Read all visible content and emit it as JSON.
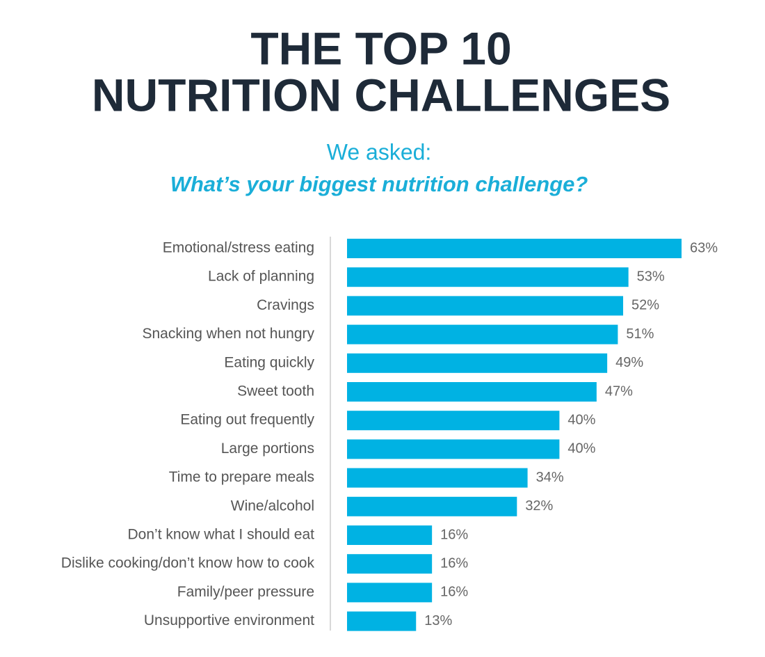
{
  "chart_data": {
    "type": "bar",
    "orientation": "horizontal",
    "title": [
      "THE TOP 10",
      "NUTRITION CHALLENGES"
    ],
    "subtitle": [
      "We asked:",
      "What’s your biggest nutrition challenge?"
    ],
    "categories": [
      "Emotional/stress eating",
      "Lack of planning",
      "Cravings",
      "Snacking when not hungry",
      "Eating quickly",
      "Sweet tooth",
      "Eating out frequently",
      "Large portions",
      "Time to prepare meals",
      "Wine/alcohol",
      "Don’t know what I should eat",
      "Dislike cooking/don’t know how to cook",
      "Family/peer pressure",
      "Unsupportive environment"
    ],
    "values": [
      63,
      53,
      52,
      51,
      49,
      47,
      40,
      40,
      34,
      32,
      16,
      16,
      16,
      13
    ],
    "value_labels": [
      "63%",
      "53%",
      "52%",
      "51%",
      "49%",
      "47%",
      "40%",
      "40%",
      "34%",
      "32%",
      "16%",
      "16%",
      "16%",
      "13%"
    ],
    "color": "#00b2e3"
  }
}
